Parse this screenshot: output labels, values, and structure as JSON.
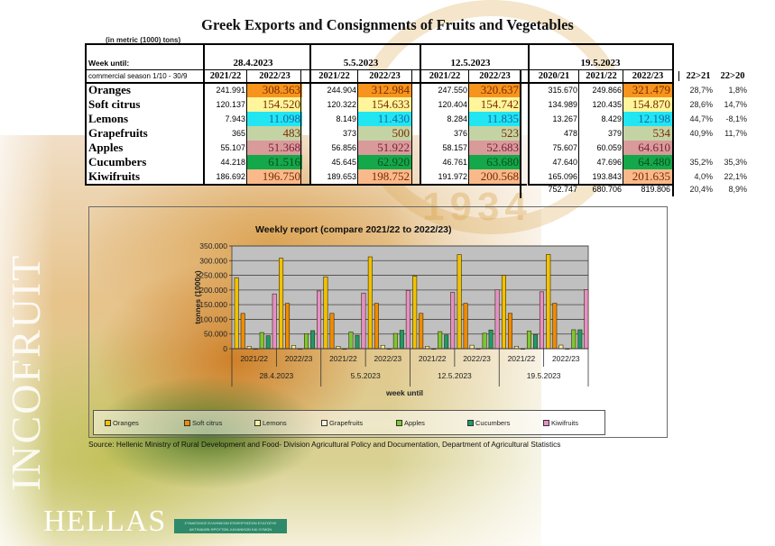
{
  "title": "Greek Exports and Consignments of Fruits and Vegetables",
  "unit_note": "(in metric (1000) tons)",
  "table": {
    "week_until_label": "Week until:",
    "season_label": "commercial season 1/10 - 30/9",
    "weeks": [
      {
        "date": "28.4.2023",
        "seasons": [
          "2021/22",
          "2022/23"
        ]
      },
      {
        "date": "5.5.2023",
        "seasons": [
          "2021/22",
          "2022/23"
        ]
      },
      {
        "date": "12.5.2023",
        "seasons": [
          "2021/22",
          "2022/23"
        ]
      },
      {
        "date": "19.5.2023",
        "seasons": [
          "2020/21",
          "2021/22",
          "2022/23"
        ]
      }
    ],
    "pct_headers": [
      "22>21",
      "22>20"
    ],
    "rows": [
      {
        "product": "Oranges",
        "color": "#f7941d",
        "w1": [
          "241.991",
          "308.363"
        ],
        "w2": [
          "244.904",
          "312.984"
        ],
        "w3": [
          "247.550",
          "320.637"
        ],
        "w4": [
          "315.670",
          "249.866",
          "321.479"
        ],
        "pct": [
          "28,7%",
          "1,8%"
        ]
      },
      {
        "product": "Soft citrus",
        "color": "#fff59a",
        "w1": [
          "120.137",
          "154.520"
        ],
        "w2": [
          "120.322",
          "154.633"
        ],
        "w3": [
          "120.404",
          "154.742"
        ],
        "w4": [
          "134.989",
          "120.435",
          "154.870"
        ],
        "pct": [
          "28,6%",
          "14,7%"
        ]
      },
      {
        "product": "Lemons",
        "color": "#21e6f2",
        "w1": [
          "7.943",
          "11.098"
        ],
        "w2": [
          "8.149",
          "11.430"
        ],
        "w3": [
          "8.284",
          "11.835"
        ],
        "w4": [
          "13.267",
          "8.429",
          "12.198"
        ],
        "pct": [
          "44,7%",
          "-8,1%"
        ]
      },
      {
        "product": "Grapefruits",
        "color": "#c4d3a4",
        "w1": [
          "365",
          "483"
        ],
        "w2": [
          "373",
          "500"
        ],
        "w3": [
          "376",
          "523"
        ],
        "w4": [
          "478",
          "379",
          "534"
        ],
        "pct": [
          "40,9%",
          "11,7%"
        ]
      },
      {
        "product": "Apples",
        "color": "#d99a9a",
        "w1": [
          "55.107",
          "51.368"
        ],
        "w2": [
          "56.856",
          "51.922"
        ],
        "w3": [
          "58.157",
          "52.683"
        ],
        "w4": [
          "75.607",
          "60.059",
          "64.610"
        ],
        "pct": [
          "",
          ""
        ]
      },
      {
        "product": "Cucumbers",
        "color": "#13a84a",
        "w1": [
          "44.218",
          "61.516"
        ],
        "w2": [
          "45.645",
          "62.920"
        ],
        "w3": [
          "46.761",
          "63.680"
        ],
        "w4": [
          "47.640",
          "47.696",
          "64.480"
        ],
        "pct": [
          "35,2%",
          "35,3%"
        ]
      },
      {
        "product": "Kiwifruits",
        "color": "#f9b98a",
        "w1": [
          "186.692",
          "196.750"
        ],
        "w2": [
          "189.653",
          "198.752"
        ],
        "w3": [
          "191.972",
          "200.568"
        ],
        "w4": [
          "165.096",
          "193.843",
          "201.635"
        ],
        "pct": [
          "4,0%",
          "22,1%"
        ]
      }
    ],
    "totals": {
      "w4": [
        "752.747",
        "680.706",
        "819.806"
      ],
      "pct": [
        "20,4%",
        "8,9%"
      ]
    }
  },
  "chart_data": {
    "type": "bar",
    "title": "Weekly report (compare 2021/22 to 2022/23)",
    "xlabel": "week until",
    "ylabel": "tonnes (1000x)",
    "ylim": [
      0,
      350000
    ],
    "yticks": [
      "0",
      "50.000",
      "100.000",
      "150.000",
      "200.000",
      "250.000",
      "300.000",
      "350.000"
    ],
    "grid": true,
    "legend_position": "bottom",
    "groups": [
      "28.4.2023",
      "5.5.2023",
      "12.5.2023",
      "19.5.2023"
    ],
    "categories": [
      "2021/22",
      "2022/23",
      "2021/22",
      "2022/23",
      "2021/22",
      "2022/23",
      "2021/22",
      "2022/23"
    ],
    "series": [
      {
        "name": "Oranges",
        "color": "#f2c200",
        "values": [
          241991,
          308363,
          244904,
          312984,
          247550,
          320637,
          249866,
          321479
        ]
      },
      {
        "name": "Soft citrus",
        "color": "#f08c00",
        "values": [
          120137,
          154520,
          120322,
          154633,
          120404,
          154742,
          120435,
          154870
        ]
      },
      {
        "name": "Lemons",
        "color": "#f7f0a0",
        "values": [
          7943,
          11098,
          8149,
          11430,
          8284,
          11835,
          8429,
          12198
        ]
      },
      {
        "name": "Grapefruits",
        "color": "#f7f5e0",
        "values": [
          365,
          483,
          373,
          500,
          376,
          523,
          379,
          534
        ]
      },
      {
        "name": "Apples",
        "color": "#7cc832",
        "values": [
          55107,
          51368,
          56856,
          51922,
          58157,
          52683,
          60059,
          64610
        ]
      },
      {
        "name": "Cucumbers",
        "color": "#1f9a6a",
        "values": [
          44218,
          61516,
          45645,
          62920,
          46761,
          63680,
          47696,
          64480
        ]
      },
      {
        "name": "Kiwifruits",
        "color": "#e68fc8",
        "values": [
          186692,
          196750,
          189653,
          198752,
          191972,
          200568,
          193843,
          201635
        ]
      }
    ]
  },
  "source": "Source: Hellenic Ministry of Rural Development and Food- Division Agricultural Policy and Documentation, Department of Agricultural Statistics",
  "branding": {
    "vertical": "INCOFRUIT",
    "country": "HELLAS",
    "badge_line1": "ΣΥΝΔΕΣΜΟΣ ΕΛΛΗΝΙΚΩΝ ΕΠΙΧΕΙΡΗΣΕΩΝ ΕΞΑΓΩΓΗΣ",
    "badge_line2": "ΑΚΤΙΝΙΔΙΩΝ ΦΡΟΥΤΩΝ-ΛΑΧΑΝΙΚΩΝ ΚΑΙ ΧΥΜΩΝ",
    "emblem_year": "1934"
  }
}
